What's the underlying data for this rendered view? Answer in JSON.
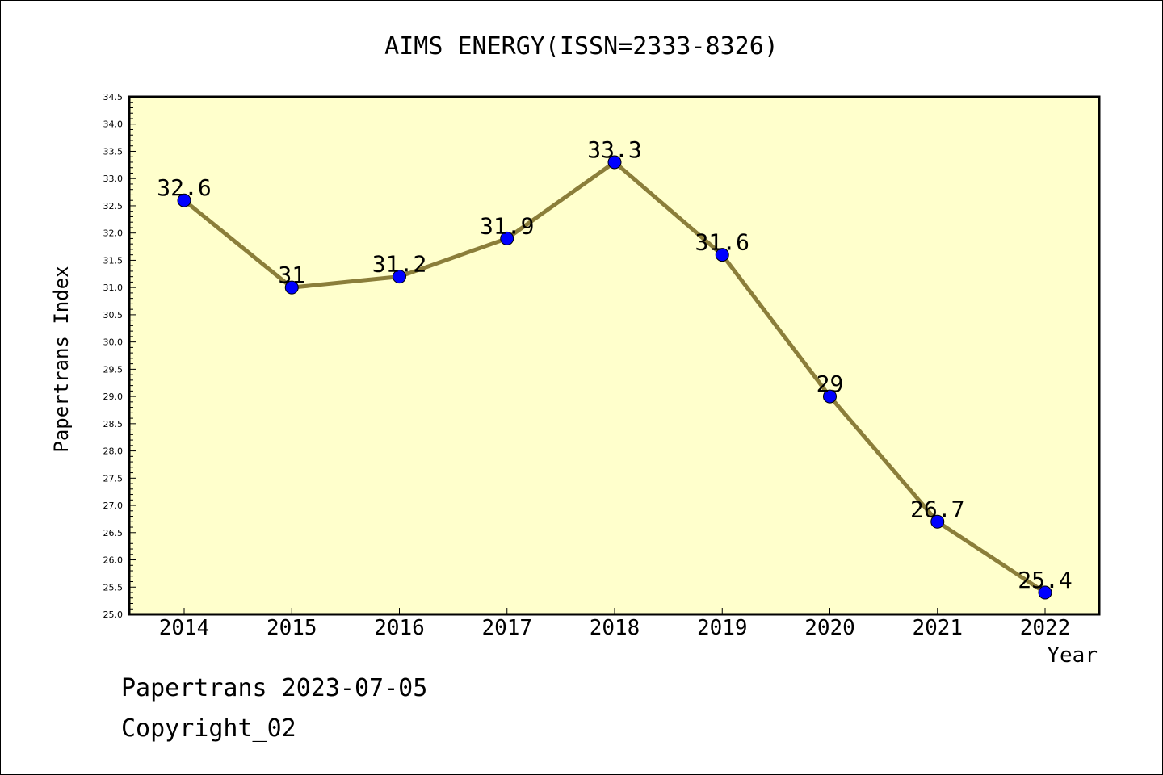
{
  "chart_data": {
    "type": "line",
    "title": "AIMS ENERGY(ISSN=2333-8326)",
    "xlabel": "Year",
    "ylabel": "Papertrans Index",
    "categories": [
      "2014",
      "2015",
      "2016",
      "2017",
      "2018",
      "2019",
      "2020",
      "2021",
      "2022"
    ],
    "series": [
      {
        "values": [
          32.6,
          31,
          31.2,
          31.9,
          33.3,
          31.6,
          29,
          26.7,
          25.4
        ]
      }
    ],
    "data_labels": [
      "32.6",
      "31",
      "31.2",
      "31.9",
      "33.3",
      "31.6",
      "29",
      "26.7",
      "25.4"
    ],
    "ylim": [
      25.0,
      34.5
    ],
    "ytick_step": 0.5,
    "ytick_labels": [
      "25.0",
      "25.5",
      "26.0",
      "26.5",
      "27.0",
      "27.5",
      "28.0",
      "28.5",
      "29.0",
      "29.5",
      "30.0",
      "30.5",
      "31.0",
      "31.5",
      "32.0",
      "32.5",
      "33.0",
      "33.5",
      "34.0",
      "34.5"
    ],
    "grid": false,
    "colors": {
      "plot_background": "#ffffcc",
      "line": "#8b7e3a",
      "marker": "#0000ff"
    }
  },
  "footer": {
    "line1": "Papertrans 2023-07-05",
    "line2": "Copyright_02"
  }
}
